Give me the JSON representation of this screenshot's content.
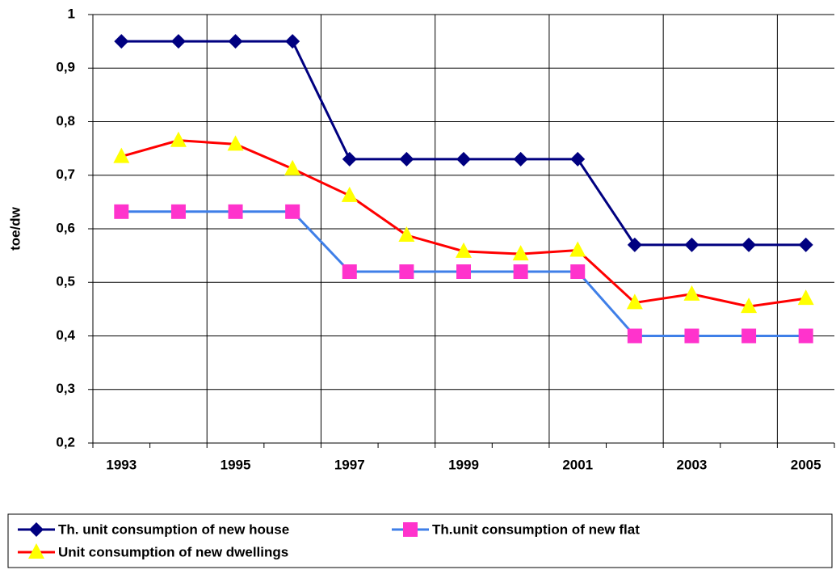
{
  "chart_data": {
    "type": "line",
    "y_label": "toe/dw",
    "categories": [
      "1993",
      null,
      "1995",
      null,
      "1997",
      null,
      "1999",
      null,
      "2001",
      null,
      "2003",
      null,
      "2005"
    ],
    "series": [
      {
        "name": "Th. unit consumption of new house",
        "color": "#000080",
        "marker": "diamond",
        "marker_color": "#000080",
        "values": [
          0.95,
          0.95,
          0.95,
          0.95,
          0.73,
          0.73,
          0.73,
          0.73,
          0.73,
          0.57,
          0.57,
          0.57,
          0.57
        ]
      },
      {
        "name": "Th.unit consumption of new flat",
        "color": "#3f7fe8",
        "marker": "square",
        "marker_color": "#ff33cc",
        "values": [
          0.632,
          0.632,
          0.632,
          0.632,
          0.52,
          0.52,
          0.52,
          0.52,
          0.52,
          0.4,
          0.4,
          0.4,
          0.4
        ]
      },
      {
        "name": "Unit consumption of new dwellings",
        "color": "#ff0000",
        "marker": "triangle",
        "marker_color": "#ffff00",
        "values": [
          0.735,
          0.765,
          0.758,
          0.712,
          0.662,
          0.588,
          0.558,
          0.553,
          0.56,
          0.462,
          0.478,
          0.455,
          0.47
        ]
      }
    ],
    "ylim": [
      0.2,
      1
    ],
    "yticks": [
      {
        "value": 0.2,
        "label": "0,2"
      },
      {
        "value": 0.3,
        "label": "0,3"
      },
      {
        "value": 0.4,
        "label": "0,4"
      },
      {
        "value": 0.5,
        "label": "0,5"
      },
      {
        "value": 0.6,
        "label": "0,6"
      },
      {
        "value": 0.7,
        "label": "0,7"
      },
      {
        "value": 0.8,
        "label": "0,8"
      },
      {
        "value": 0.9,
        "label": "0,9"
      },
      1
    ],
    "grid": true,
    "legend": "bottom"
  }
}
